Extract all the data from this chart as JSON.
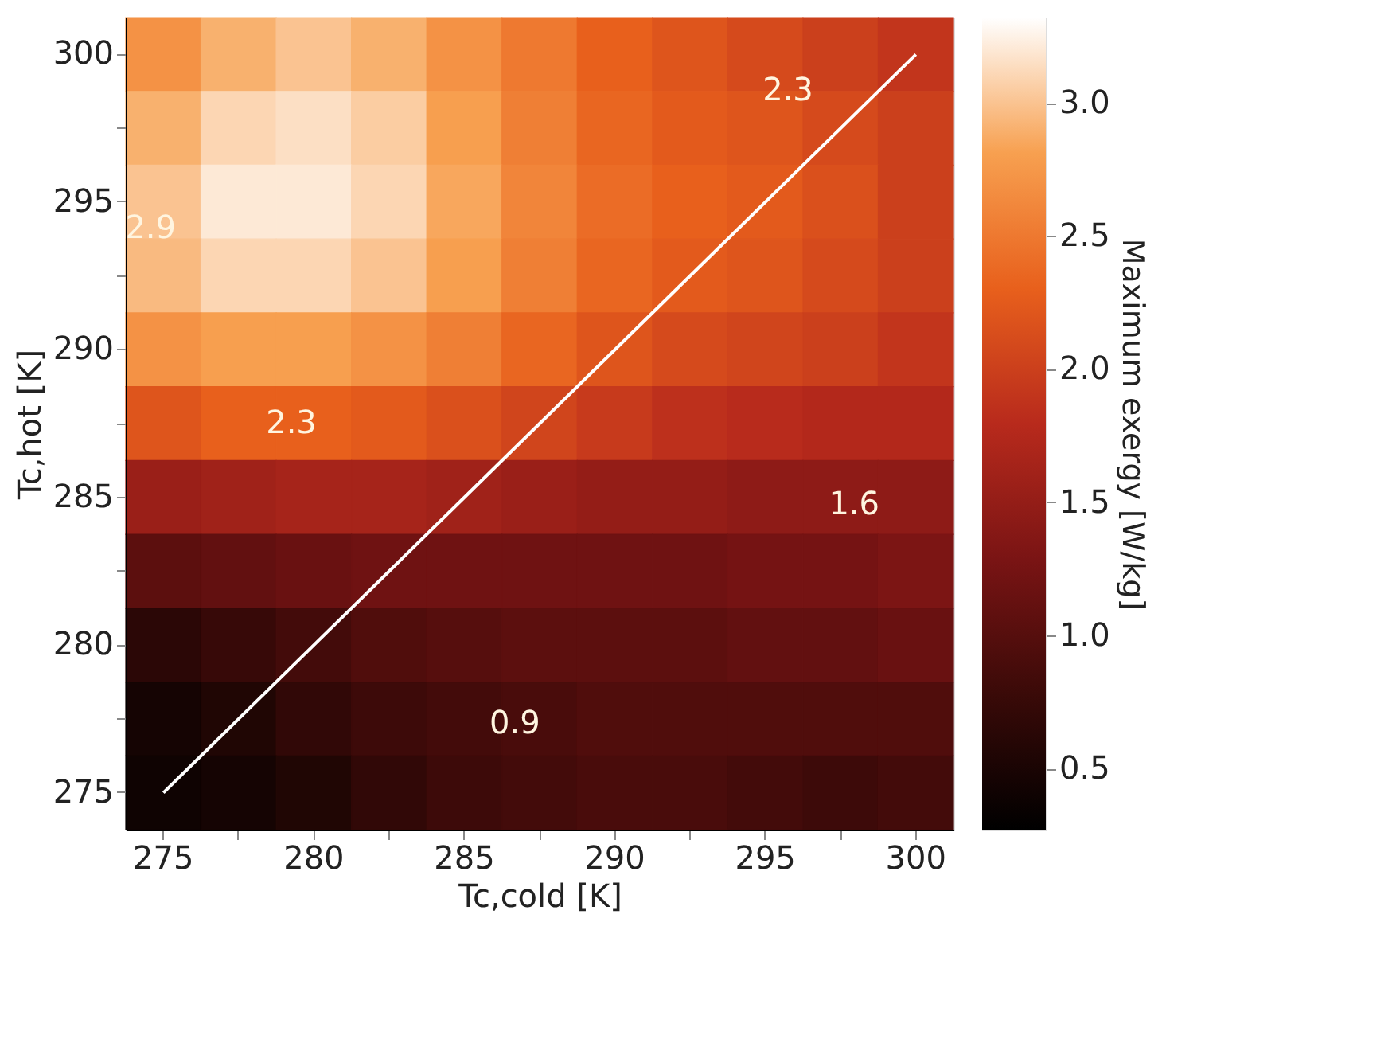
{
  "chart_data": {
    "type": "heatmap",
    "xlabel": "Tc,cold [K]",
    "ylabel": "Tc,hot [K]",
    "clabel": "Maximum exergy [W/kg]",
    "categories": [
      "275",
      null,
      "280",
      null,
      "285",
      null,
      "290",
      null,
      "295",
      null,
      "300"
    ],
    "y_categories": [
      "300",
      null,
      "295",
      null,
      "290",
      null,
      "285",
      null,
      "280",
      null,
      "275"
    ],
    "cells": [
      [
        2.7,
        2.9,
        3.0,
        2.9,
        2.7,
        2.5,
        2.3,
        2.2,
        2.1,
        2.0,
        1.9
      ],
      [
        2.9,
        3.1,
        3.15,
        3.05,
        2.8,
        2.55,
        2.35,
        2.25,
        2.2,
        2.1,
        2.0
      ],
      [
        3.0,
        3.2,
        3.2,
        3.1,
        2.85,
        2.6,
        2.4,
        2.3,
        2.25,
        2.15,
        2.0
      ],
      [
        2.95,
        3.1,
        3.1,
        3.0,
        2.8,
        2.55,
        2.35,
        2.25,
        2.2,
        2.1,
        2.0
      ],
      [
        2.7,
        2.8,
        2.8,
        2.7,
        2.55,
        2.35,
        2.2,
        2.1,
        2.05,
        2.0,
        1.9
      ],
      [
        2.2,
        2.3,
        2.3,
        2.25,
        2.15,
        2.05,
        1.95,
        1.85,
        1.8,
        1.75,
        1.75
      ],
      [
        1.55,
        1.6,
        1.65,
        1.65,
        1.6,
        1.55,
        1.5,
        1.5,
        1.45,
        1.45,
        1.45
      ],
      [
        1.05,
        1.1,
        1.15,
        1.2,
        1.2,
        1.2,
        1.2,
        1.2,
        1.25,
        1.25,
        1.3
      ],
      [
        0.65,
        0.75,
        0.85,
        0.95,
        1.0,
        1.05,
        1.05,
        1.05,
        1.1,
        1.1,
        1.15
      ],
      [
        0.45,
        0.55,
        0.7,
        0.8,
        0.85,
        0.9,
        0.95,
        0.95,
        0.95,
        0.95,
        0.95
      ],
      [
        0.4,
        0.45,
        0.55,
        0.7,
        0.8,
        0.85,
        0.9,
        0.9,
        0.85,
        0.8,
        0.85
      ]
    ],
    "clim": [
      0.27,
      3.32
    ],
    "cticks": [
      0.5,
      {
        "value": 1,
        "label": "1.0"
      },
      1.5,
      {
        "value": 2,
        "label": "2.0"
      },
      2.5,
      {
        "value": 3,
        "label": "3.0"
      }
    ],
    "series": [
      {
        "type": "line",
        "color": "#ffffff",
        "values": [
          10,
          9,
          8,
          7,
          6,
          5,
          4,
          3,
          2,
          1,
          0
        ]
      }
    ],
    "annotations": [
      "2.9",
      "2.3",
      "2.3",
      "1.6",
      "0.9"
    ]
  }
}
